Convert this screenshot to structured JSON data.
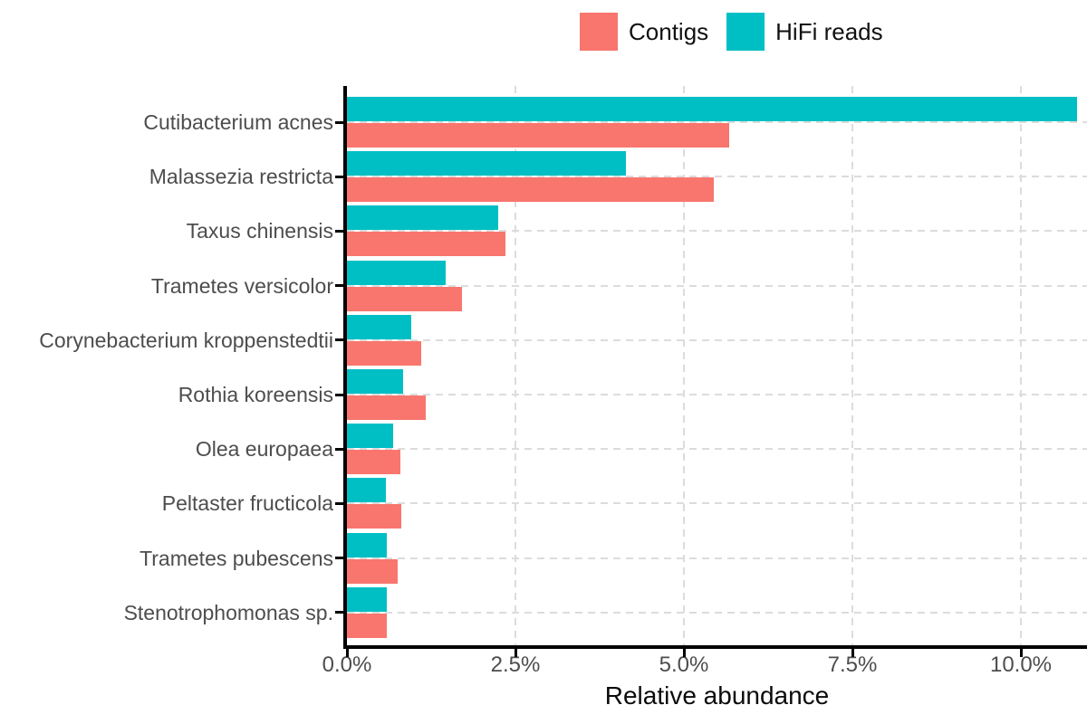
{
  "chart_data": {
    "type": "bar",
    "orientation": "horizontal",
    "title": "",
    "xlabel": "Relative abundance",
    "ylabel": "",
    "units": "%",
    "xlim": [
      0,
      10.98
    ],
    "x_tick_values": [
      0,
      2.5,
      5,
      7.5,
      10
    ],
    "x_tick_labels": [
      "0.0%",
      "2.5%",
      "5.0%",
      "7.5%",
      "10.0%"
    ],
    "grid": "dashed major gridlines, vertical at x ticks and horizontal at each category",
    "legend_position": "top-center",
    "bar_order_top_to_bottom": [
      "HiFi reads",
      "Contigs"
    ],
    "categories": [
      "Cutibacterium acnes",
      "Malassezia restricta",
      "Taxus chinensis",
      "Trametes versicolor",
      "Corynebacterium kroppenstedtii",
      "Rothia koreensis",
      "Olea europaea",
      "Peltaster fructicola",
      "Trametes pubescens",
      "Stenotrophomonas sp."
    ],
    "series": [
      {
        "name": "Contigs",
        "color": "#F8766D",
        "values": [
          5.67,
          5.45,
          2.35,
          1.71,
          1.1,
          1.17,
          0.79,
          0.81,
          0.75,
          0.59
        ]
      },
      {
        "name": "HiFi reads",
        "color": "#00BFC4",
        "values": [
          10.83,
          4.14,
          2.24,
          1.47,
          0.95,
          0.83,
          0.69,
          0.58,
          0.59,
          0.59
        ]
      }
    ]
  },
  "legend": {
    "items": [
      {
        "label": "Contigs",
        "color": "#F8766D"
      },
      {
        "label": "HiFi reads",
        "color": "#00BFC4"
      }
    ]
  },
  "colors": {
    "axis_line": "#000000",
    "gridline": "#DCDCDC",
    "tick_text": "#4D4D4D",
    "axis_title_text": "#0B0B0B",
    "legend_text": "#111111",
    "background": "#FFFFFF"
  }
}
